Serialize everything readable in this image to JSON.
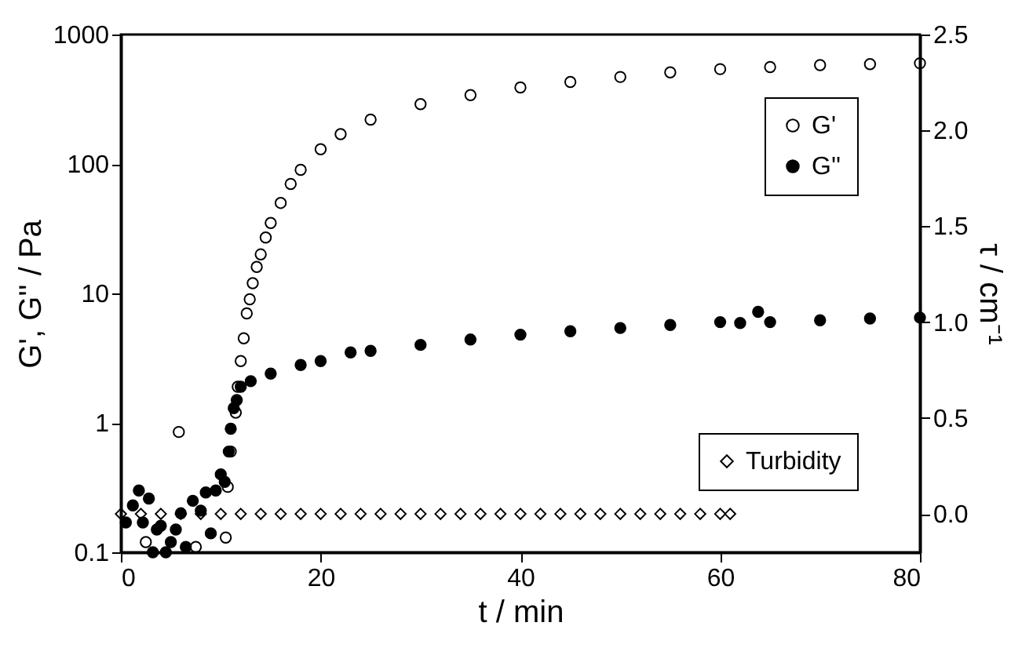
{
  "chart_data": {
    "type": "scatter",
    "xlabel": "t / min",
    "ylabel": "G', G'' / Pa",
    "y2label": "τ / cm⁻¹",
    "log": "y",
    "grid": false,
    "legend": "right",
    "marker": "circle",
    "xlim": [
      0,
      80
    ],
    "xticks": [
      0,
      20,
      40,
      60,
      80
    ],
    "ylim": [
      0.1,
      1000
    ],
    "yticks": [
      0.1,
      1,
      10,
      100,
      1000
    ],
    "y2lim": [
      -0.2,
      2.5
    ],
    "y2ticks": [
      {
        "value": 0,
        "label": "0.0"
      },
      {
        "value": 0.5,
        "label": "0.5"
      },
      {
        "value": 1,
        "label": "1.0"
      },
      {
        "value": 1.5,
        "label": "1.5"
      },
      {
        "value": 2,
        "label": "2.0"
      },
      {
        "value": 2.5,
        "label": "2.5"
      }
    ],
    "series": [
      {
        "name": "G'",
        "color": "#000000",
        "x": [
          2.5,
          5.8,
          7.5,
          10.5,
          10.7,
          11,
          11.5,
          11.7,
          12,
          12.3,
          12.6,
          12.9,
          13.2,
          13.6,
          14,
          14.5,
          15,
          16,
          17,
          18,
          20,
          22,
          25,
          30,
          35,
          40,
          45,
          50,
          55,
          60,
          65,
          70,
          75,
          80
        ],
        "values": [
          0.12,
          0.85,
          0.11,
          0.13,
          0.32,
          0.6,
          1.2,
          1.9,
          3,
          4.5,
          7,
          9,
          12,
          16,
          20,
          27,
          35,
          50,
          70,
          90,
          130,
          170,
          220,
          290,
          340,
          390,
          430,
          470,
          510,
          540,
          560,
          580,
          590,
          600
        ]
      },
      {
        "name": "G''",
        "color": "#000000",
        "x": [
          0.5,
          1.2,
          1.8,
          2.2,
          2.8,
          3.2,
          3.6,
          4,
          4.5,
          5,
          5.5,
          6,
          6.5,
          7.2,
          8,
          8.5,
          9,
          9.5,
          10,
          10.4,
          10.8,
          11,
          11.3,
          11.6,
          12,
          13,
          15,
          18,
          20,
          23,
          25,
          30,
          35,
          40,
          45,
          50,
          55,
          60,
          62,
          63.8,
          65,
          70,
          75,
          80
        ],
        "values": [
          0.17,
          0.23,
          0.3,
          0.17,
          0.26,
          0.1,
          0.15,
          0.16,
          0.1,
          0.12,
          0.15,
          0.2,
          0.11,
          0.25,
          0.21,
          0.29,
          0.14,
          0.3,
          0.4,
          0.35,
          0.6,
          0.9,
          1.3,
          1.5,
          1.9,
          2.1,
          2.4,
          2.8,
          3,
          3.5,
          3.6,
          4,
          4.4,
          4.8,
          5.1,
          5.4,
          5.7,
          6,
          5.9,
          7.2,
          6,
          6.2,
          6.4,
          6.5
        ]
      },
      {
        "name": "Turbidity",
        "color": "#000000",
        "marker": "diamond",
        "axis": "y2",
        "x": [
          0,
          2,
          4,
          6,
          8,
          10,
          12,
          14,
          16,
          18,
          20,
          22,
          24,
          26,
          28,
          30,
          32,
          34,
          36,
          38,
          40,
          42,
          44,
          46,
          48,
          50,
          52,
          54,
          56,
          58,
          60,
          61
        ],
        "values": [
          0,
          0,
          0,
          0,
          0,
          0,
          0,
          0,
          0,
          0,
          0,
          0,
          0,
          0,
          0,
          0,
          0,
          0,
          0,
          0,
          0,
          0,
          0,
          0,
          0,
          0,
          0,
          0,
          0,
          0,
          0,
          0
        ]
      }
    ]
  }
}
